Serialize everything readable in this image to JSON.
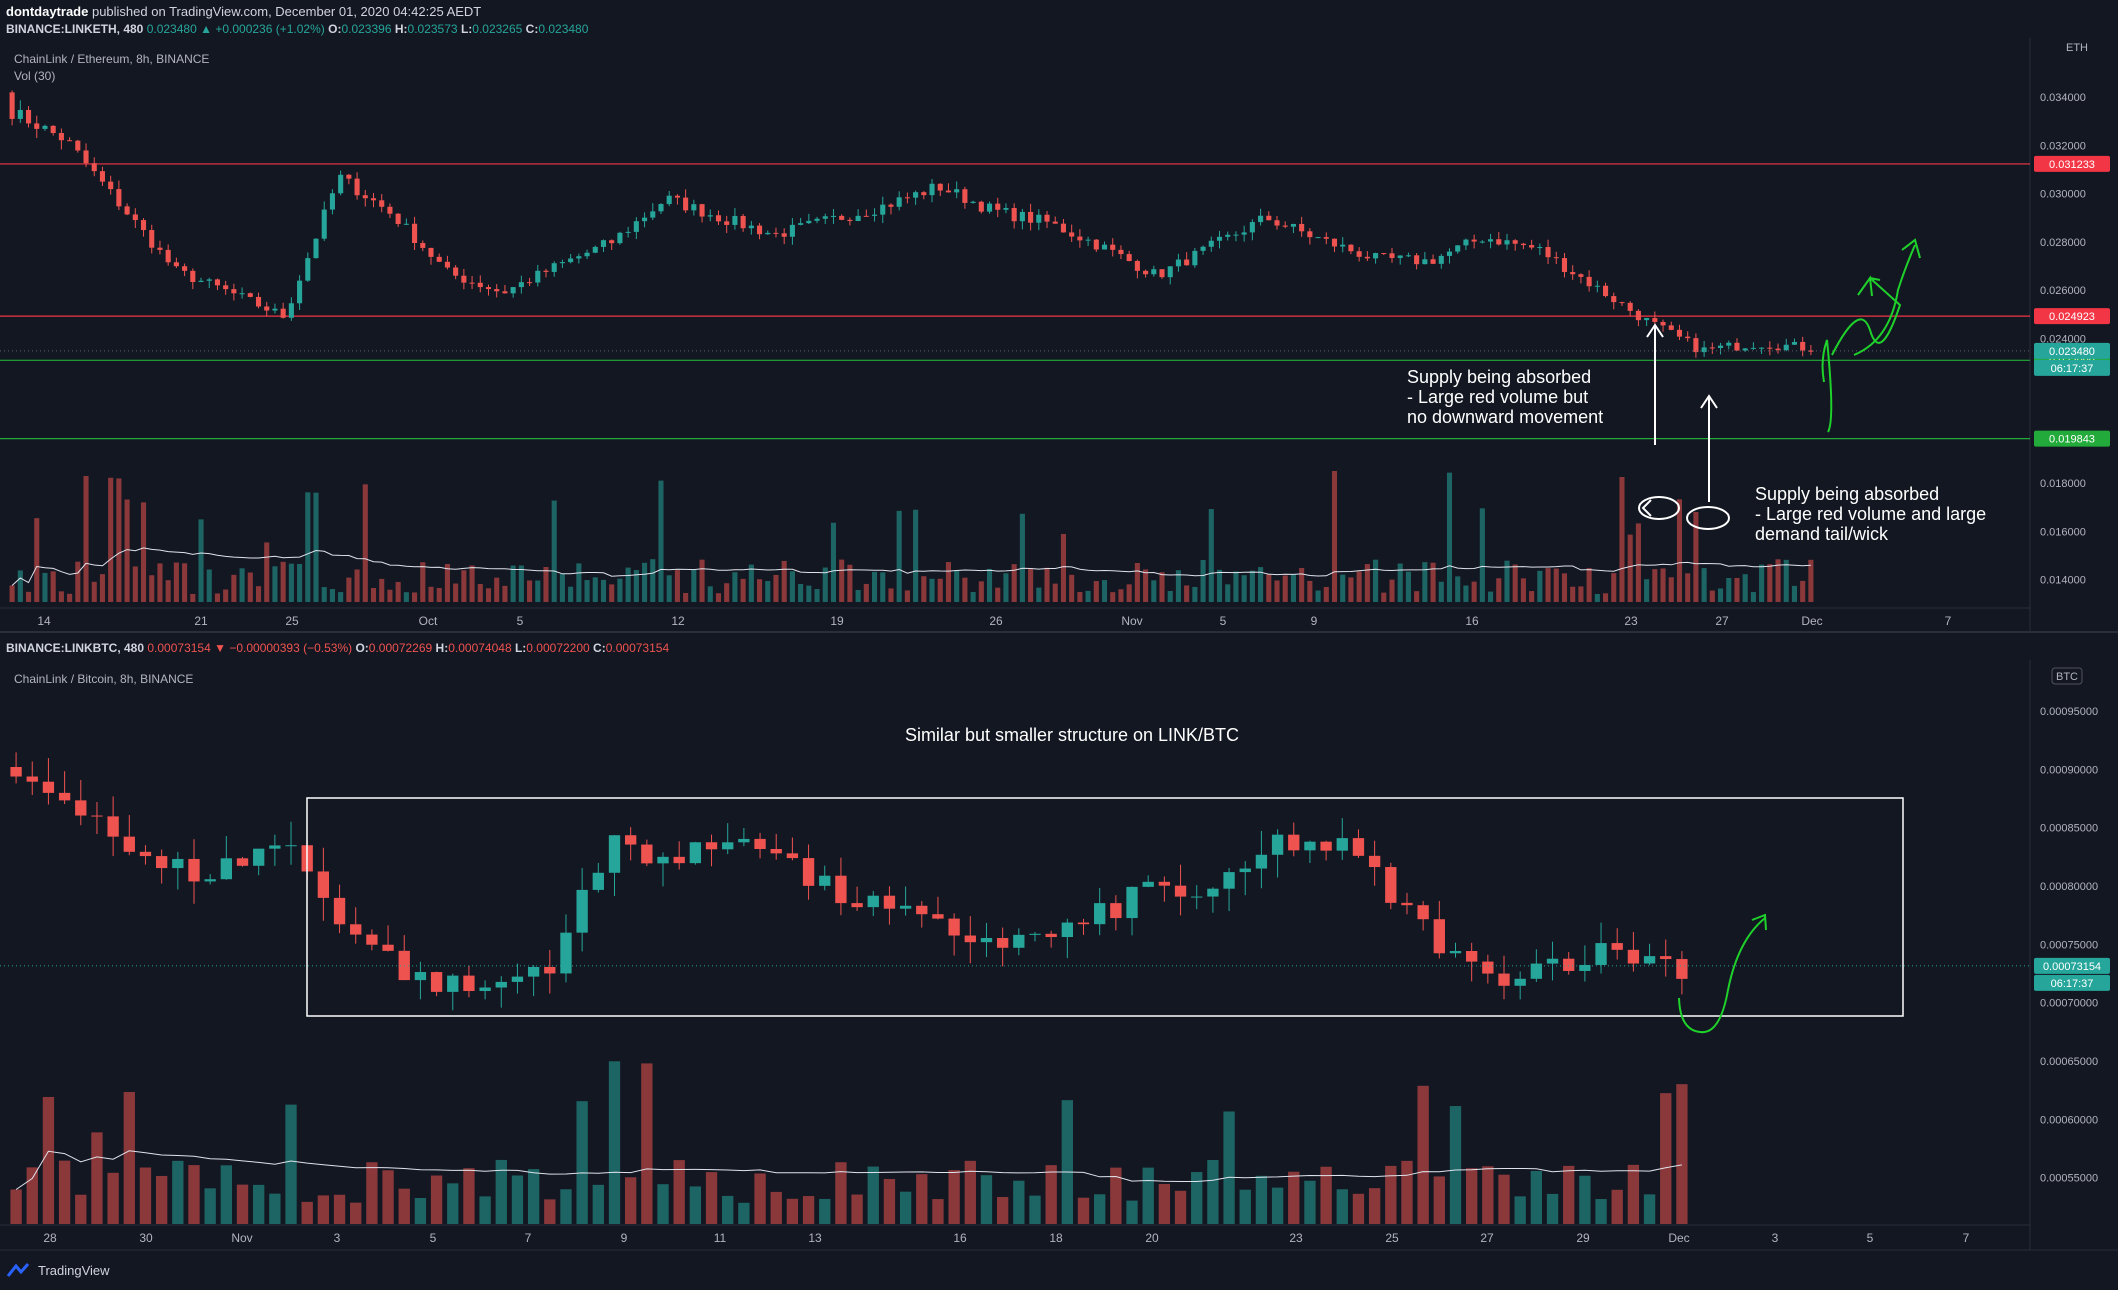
{
  "header": {
    "author": "dontdaytrade",
    "published": "published on TradingView.com, December 01, 2020 04:42:25 AEDT"
  },
  "top": {
    "symbol": "BINANCE:LINKETH, 480",
    "last": "0.023480",
    "change": "+0.000236 (+1.02%)",
    "o_label": "O:",
    "o": "0.023396",
    "h_label": "H:",
    "h": "0.023573",
    "l_label": "L:",
    "l": "0.023265",
    "c_label": "C:",
    "c": "0.023480",
    "title": "ChainLink / Ethereum, 8h, BINANCE",
    "vol_label": "Vol (30)",
    "currency": "ETH"
  },
  "bottom": {
    "symbol": "BINANCE:LINKBTC, 480",
    "last": "0.00073154",
    "change": "−0.00000393 (−0.53%)",
    "o_label": "O:",
    "o": "0.00072269",
    "h_label": "H:",
    "h": "0.00074048",
    "l_label": "L:",
    "l": "0.00072200",
    "c_label": "C:",
    "c": "0.00073154",
    "title": "ChainLink / Bitcoin, 8h, BINANCE",
    "currency": "BTC"
  },
  "annotations": {
    "top_a": [
      "Supply being absorbed",
      "- Large red volume but",
      "no downward movement"
    ],
    "top_b": [
      "Supply being absorbed",
      "- Large red volume and large",
      "demand tail/wick"
    ],
    "bottom": "Similar but smaller structure on LINK/BTC"
  },
  "footer": {
    "brand": "TradingView"
  },
  "colors": {
    "bg": "#131722",
    "up": "#26a69a",
    "down": "#ef5350",
    "red_line": "#f23645",
    "green_line": "#22ab3a",
    "arrow": "#1fd12b"
  },
  "chart_data": [
    {
      "type": "candlestick",
      "title": "ChainLink / Ethereum, 8h, BINANCE",
      "ylabel": "ETH",
      "ylim": [
        0.01315,
        0.03575
      ],
      "y_ticks": [
        "0.034000",
        "0.032000",
        "0.030000",
        "0.028000",
        "0.026000",
        "0.024000",
        "0.018000",
        "0.016000",
        "0.014000"
      ],
      "x_ticks": [
        "14",
        "21",
        "25",
        "Oct",
        "5",
        "12",
        "19",
        "26",
        "Nov",
        "5",
        "9",
        "16",
        "23",
        "27",
        "Dec",
        "7"
      ],
      "levels": [
        {
          "value": "0.031233",
          "color": "red"
        },
        {
          "value": "0.024923",
          "color": "red"
        },
        {
          "value": "0.023090",
          "color": "green"
        },
        {
          "value": "0.019843",
          "color": "green"
        }
      ],
      "price_label": "0.023480",
      "countdown": "06:17:37",
      "key_closes": [
        0.0334,
        0.0322,
        0.0295,
        0.0268,
        0.0259,
        0.0249,
        0.0307,
        0.0291,
        0.0267,
        0.0259,
        0.027,
        0.028,
        0.0298,
        0.029,
        0.0283,
        0.0289,
        0.0295,
        0.0303,
        0.0293,
        0.0288,
        0.0278,
        0.0266,
        0.0278,
        0.029,
        0.0281,
        0.0273,
        0.0272,
        0.0282,
        0.0277,
        0.0262,
        0.0247,
        0.0235,
        0.0238,
        0.0236
      ]
    },
    {
      "type": "candlestick",
      "title": "ChainLink / Bitcoin, 8h, BINANCE",
      "ylabel": "BTC",
      "ylim": [
        0.000512,
        0.000968
      ],
      "y_ticks": [
        "0.00095000",
        "0.00090000",
        "0.00085000",
        "0.00080000",
        "0.00075000",
        "0.00070000",
        "0.00065000",
        "0.00060000",
        "0.00055000"
      ],
      "x_ticks": [
        "28",
        "30",
        "Nov",
        "3",
        "5",
        "7",
        "9",
        "11",
        "13",
        "16",
        "18",
        "20",
        "23",
        "25",
        "27",
        "29",
        "Dec",
        "3",
        "5",
        "7"
      ],
      "price_label": "0.00073154",
      "countdown": "06:17:37",
      "key_closes": [
        0.000895,
        0.000872,
        0.000815,
        0.000812,
        0.00084,
        0.000765,
        0.00072,
        0.00071,
        0.000735,
        0.00084,
        0.00082,
        0.00085,
        0.0008,
        0.00078,
        0.00076,
        0.000752,
        0.000765,
        0.0008,
        0.00079,
        0.00084,
        0.00083,
        0.00077,
        0.00072,
        0.000735,
        0.000745,
        0.000731
      ]
    }
  ]
}
